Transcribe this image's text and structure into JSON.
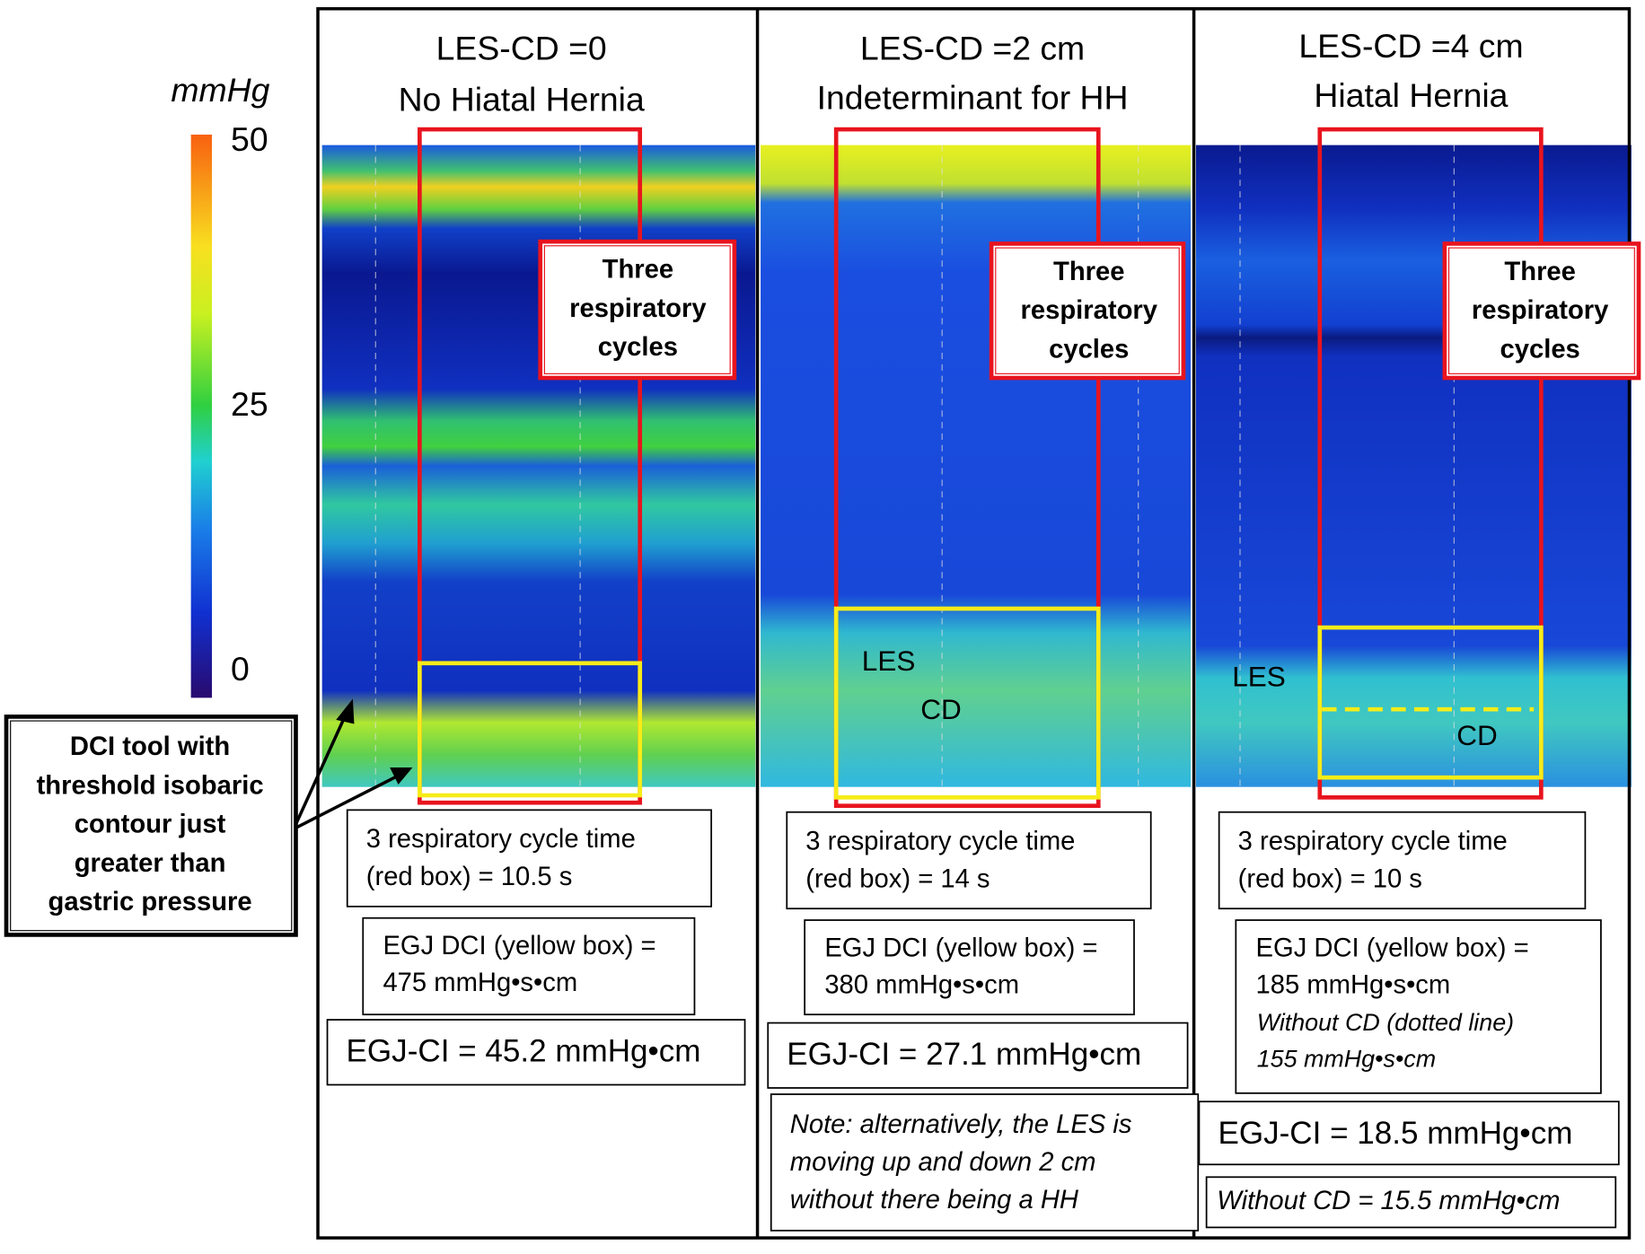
{
  "colorbar": {
    "unit": "mmHg",
    "range": [
      0,
      50
    ],
    "ticks": [
      50,
      25,
      0
    ]
  },
  "annotation": {
    "lines": [
      "DCI tool with",
      "threshold isobaric",
      "contour just",
      "greater than",
      "gastric pressure"
    ]
  },
  "panels": [
    {
      "title": [
        "LES-CD =0",
        "No Hiatal Hernia"
      ],
      "red_box_label": [
        "Three",
        "respiratory",
        "cycles"
      ],
      "cycle_time": [
        "3 respiratory cycle time",
        "(red box) = 10.5 s"
      ],
      "dci": [
        "EGJ DCI (yellow box) =",
        "475 mmHg•s•cm"
      ],
      "egj_ci": "EGJ-CI = 45.2 mmHg•cm"
    },
    {
      "title": [
        "LES-CD =2 cm",
        "Indeterminant for HH"
      ],
      "red_box_label": [
        "Three",
        "respiratory",
        "cycles"
      ],
      "plot_labels": [
        "LES",
        "CD"
      ],
      "cycle_time": [
        "3 respiratory cycle time",
        "(red box) = 14 s"
      ],
      "dci": [
        "EGJ DCI (yellow box) =",
        "380 mmHg•s•cm"
      ],
      "egj_ci": "EGJ-CI = 27.1 mmHg•cm",
      "note": [
        "Note: alternatively, the LES is",
        "moving up and down 2 cm",
        "without there being a HH"
      ]
    },
    {
      "title": [
        "LES-CD =4 cm",
        "Hiatal Hernia"
      ],
      "red_box_label": [
        "Three",
        "respiratory",
        "cycles"
      ],
      "plot_labels": [
        "LES",
        "CD"
      ],
      "cycle_time": [
        "3 respiratory cycle time",
        "(red box) = 10 s"
      ],
      "dci": [
        "EGJ DCI (yellow box) =",
        "185 mmHg•s•cm"
      ],
      "dci_without_cd": [
        "Without CD (dotted line)",
        "155 mmHg•s•cm"
      ],
      "egj_ci": "EGJ-CI = 18.5 mmHg•cm",
      "egj_ci_without_cd": "Without CD = 15.5 mmHg•cm"
    }
  ]
}
